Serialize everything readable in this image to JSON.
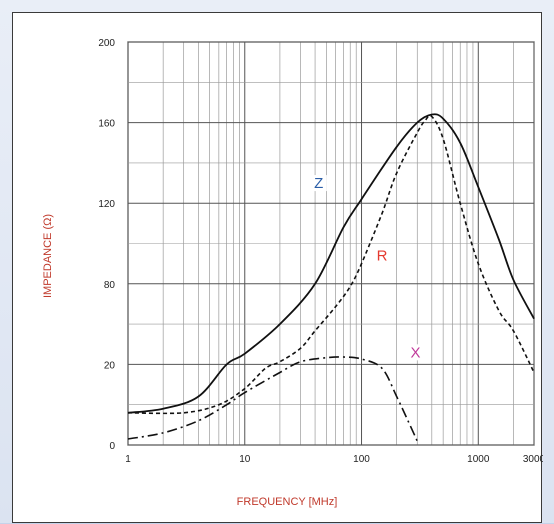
{
  "chart_data": {
    "type": "line",
    "xlabel": "FREQUENCY [MHz]",
    "ylabel": "IMPEDANCE (Ω)",
    "xscale": "log",
    "xlim": [
      1,
      3000
    ],
    "x_ticks": [
      "1",
      "10",
      "100",
      "1000",
      "3000"
    ],
    "y_ticks": [
      "0",
      "20",
      "80",
      "120",
      "160",
      "200"
    ],
    "grid": true,
    "series": [
      {
        "name": "Z",
        "color": "#2b5ea8",
        "line_style": "solid",
        "points": [
          [
            1,
            8
          ],
          [
            2,
            9
          ],
          [
            4,
            12
          ],
          [
            7,
            20
          ],
          [
            10,
            28
          ],
          [
            20,
            50
          ],
          [
            40,
            80
          ],
          [
            70,
            108
          ],
          [
            100,
            122
          ],
          [
            200,
            148
          ],
          [
            300,
            160
          ],
          [
            400,
            164
          ],
          [
            500,
            162
          ],
          [
            700,
            150
          ],
          [
            1000,
            128
          ],
          [
            1500,
            102
          ],
          [
            2000,
            82
          ],
          [
            3000,
            54
          ]
        ]
      },
      {
        "name": "R",
        "color": "#e53a2f",
        "line_style": "dashed",
        "points": [
          [
            1,
            8
          ],
          [
            3,
            8
          ],
          [
            6,
            10
          ],
          [
            10,
            14
          ],
          [
            15,
            19
          ],
          [
            20,
            22
          ],
          [
            30,
            32
          ],
          [
            40,
            45
          ],
          [
            60,
            63
          ],
          [
            80,
            78
          ],
          [
            100,
            90
          ],
          [
            150,
            115
          ],
          [
            200,
            135
          ],
          [
            300,
            155
          ],
          [
            350,
            161
          ],
          [
            400,
            163
          ],
          [
            500,
            152
          ],
          [
            700,
            120
          ],
          [
            1000,
            90
          ],
          [
            1500,
            60
          ],
          [
            2000,
            45
          ],
          [
            3000,
            18
          ]
        ]
      },
      {
        "name": "X",
        "color": "#c03a9a",
        "line_style": "dash-dot",
        "points": [
          [
            1,
            1.5
          ],
          [
            2,
            3
          ],
          [
            4,
            6
          ],
          [
            7,
            10
          ],
          [
            10,
            13
          ],
          [
            20,
            18
          ],
          [
            30,
            22
          ],
          [
            50,
            25
          ],
          [
            70,
            25.5
          ],
          [
            100,
            24
          ],
          [
            150,
            19
          ],
          [
            200,
            12
          ],
          [
            250,
            6
          ],
          [
            300,
            1
          ]
        ]
      }
    ]
  }
}
